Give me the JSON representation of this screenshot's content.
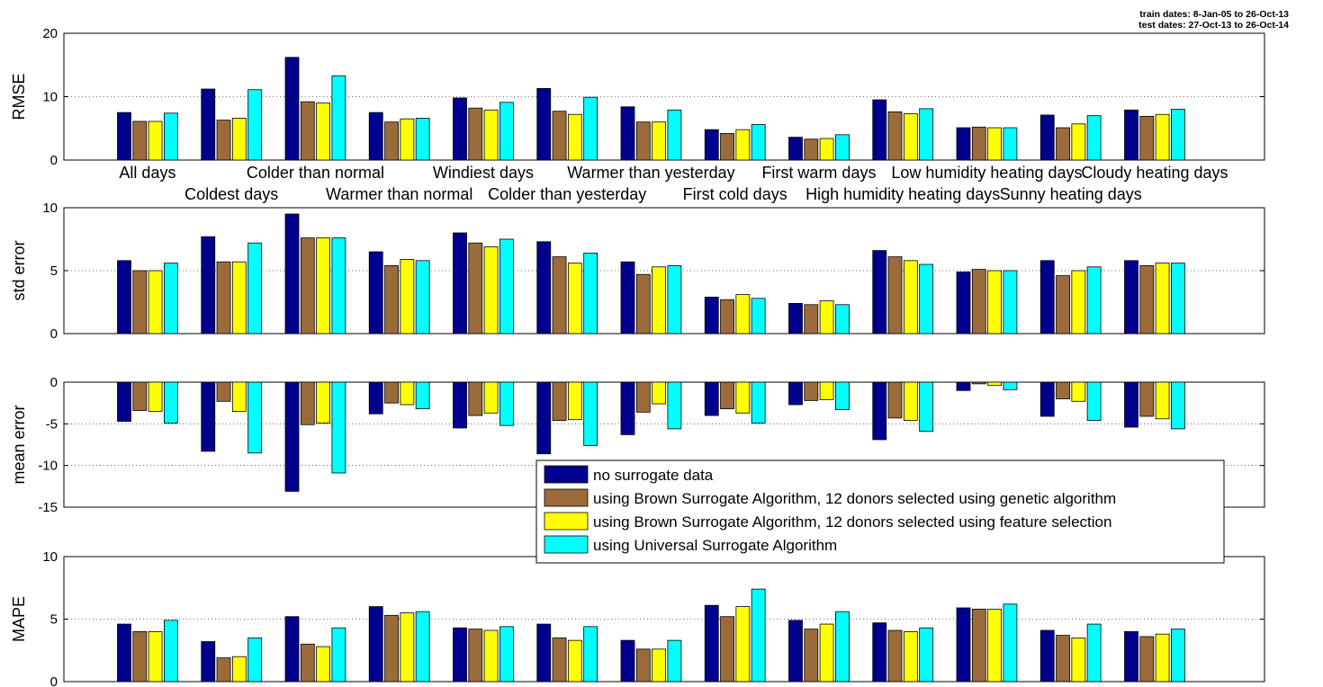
{
  "header": {
    "train_dates": "train dates:   8-Jan-05 to 26-Oct-13",
    "test_dates": "test dates:   27-Oct-13 to 26-Oct-14"
  },
  "legend": {
    "entries": [
      "no surrogate data",
      "using Brown Surrogate Algorithm, 12 donors selected using genetic algorithm",
      "using Brown Surrogate Algorithm, 12 donors selected using feature selection",
      "using Universal Surrogate Algorithm"
    ]
  },
  "chart_data": {
    "type": "bar",
    "categories": [
      "All days",
      "Coldest days",
      "Colder than normal",
      "Warmer than normal",
      "Windiest days",
      "Colder than yesterday",
      "Warmer than yesterday",
      "First cold days",
      "First warm days",
      "High humidity heating days",
      "Low humidity heating days",
      "Sunny heating days",
      "Cloudy heating days"
    ],
    "colors": [
      "#00008F",
      "#9C6B3C",
      "#FFFF00",
      "#00FFFF"
    ],
    "panels": [
      {
        "ylabel": "RMSE",
        "ylim": [
          0,
          20
        ],
        "yticks": [
          "0",
          "10",
          "20"
        ],
        "show_categories": true,
        "series": [
          {
            "name": "no surrogate data",
            "values": [
              7.5,
              11.2,
              16.2,
              7.5,
              9.8,
              11.3,
              8.4,
              4.8,
              3.6,
              9.5,
              5.1,
              7.1,
              7.9
            ]
          },
          {
            "name": "using Brown Surrogate Algorithm, 12 donors selected using genetic algorithm",
            "values": [
              6.1,
              6.3,
              9.2,
              6.0,
              8.2,
              7.7,
              6.0,
              4.2,
              3.3,
              7.6,
              5.2,
              5.1,
              6.9
            ]
          },
          {
            "name": "using Brown Surrogate Algorithm, 12 donors selected using feature selection",
            "values": [
              6.1,
              6.6,
              9.0,
              6.5,
              7.9,
              7.2,
              6.0,
              4.8,
              3.4,
              7.3,
              5.1,
              5.7,
              7.2
            ]
          },
          {
            "name": "using Universal Surrogate Algorithm",
            "values": [
              7.4,
              11.1,
              13.3,
              6.6,
              9.1,
              9.9,
              7.9,
              5.6,
              4.0,
              8.1,
              5.1,
              7.0,
              8.0
            ]
          }
        ]
      },
      {
        "ylabel": "std error",
        "ylim": [
          0,
          10
        ],
        "yticks": [
          "0",
          "5",
          "10"
        ],
        "show_categories": false,
        "series": [
          {
            "name": "no surrogate data",
            "values": [
              5.8,
              7.7,
              9.5,
              6.5,
              8.0,
              7.3,
              5.7,
              2.9,
              2.4,
              6.6,
              4.9,
              5.8,
              5.8
            ]
          },
          {
            "name": "using Brown Surrogate Algorithm, 12 donors selected using genetic algorithm",
            "values": [
              5.0,
              5.7,
              7.6,
              5.4,
              7.2,
              6.1,
              4.7,
              2.7,
              2.3,
              6.1,
              5.1,
              4.6,
              5.4
            ]
          },
          {
            "name": "using Brown Surrogate Algorithm, 12 donors selected using feature selection",
            "values": [
              5.0,
              5.7,
              7.6,
              5.9,
              6.9,
              5.6,
              5.3,
              3.1,
              2.6,
              5.8,
              5.0,
              5.0,
              5.6
            ]
          },
          {
            "name": "using Universal Surrogate Algorithm",
            "values": [
              5.6,
              7.2,
              7.6,
              5.8,
              7.5,
              6.4,
              5.4,
              2.8,
              2.3,
              5.5,
              5.0,
              5.3,
              5.6
            ]
          }
        ]
      },
      {
        "ylabel": "mean error",
        "ylim": [
          -15,
          0
        ],
        "yticks": [
          "0",
          "-5",
          "-10",
          "-15"
        ],
        "show_categories": false,
        "series": [
          {
            "name": "no surrogate data",
            "values": [
              -4.7,
              -8.3,
              -13.1,
              -3.8,
              -5.5,
              -8.6,
              -6.3,
              -4.0,
              -2.7,
              -6.9,
              -1.0,
              -4.1,
              -5.4
            ]
          },
          {
            "name": "using Brown Surrogate Algorithm, 12 donors selected using genetic algorithm",
            "values": [
              -3.4,
              -2.3,
              -5.1,
              -2.5,
              -4.0,
              -4.6,
              -3.6,
              -3.2,
              -2.2,
              -4.3,
              -0.2,
              -2.0,
              -4.1
            ]
          },
          {
            "name": "using Brown Surrogate Algorithm, 12 donors selected using feature selection",
            "values": [
              -3.5,
              -3.5,
              -4.9,
              -2.7,
              -3.7,
              -4.5,
              -2.6,
              -3.7,
              -2.1,
              -4.6,
              -0.4,
              -2.3,
              -4.4
            ]
          },
          {
            "name": "using Universal Surrogate Algorithm",
            "values": [
              -4.9,
              -8.5,
              -10.9,
              -3.2,
              -5.2,
              -7.6,
              -5.6,
              -4.9,
              -3.3,
              -5.9,
              -0.9,
              -4.6,
              -5.6
            ]
          }
        ]
      },
      {
        "ylabel": "MAPE",
        "ylim": [
          0,
          10
        ],
        "yticks": [
          "0",
          "5",
          "10"
        ],
        "show_categories": false,
        "series": [
          {
            "name": "no surrogate data",
            "values": [
              4.6,
              3.2,
              5.2,
              6.0,
              4.3,
              4.6,
              3.3,
              6.1,
              4.9,
              4.7,
              5.9,
              4.1,
              4.0
            ]
          },
          {
            "name": "using Brown Surrogate Algorithm, 12 donors selected using genetic algorithm",
            "values": [
              4.0,
              1.9,
              3.0,
              5.3,
              4.2,
              3.5,
              2.6,
              5.2,
              4.2,
              4.1,
              5.8,
              3.7,
              3.6
            ]
          },
          {
            "name": "using Brown Surrogate Algorithm, 12 donors selected using feature selection",
            "values": [
              4.0,
              2.0,
              2.8,
              5.5,
              4.1,
              3.3,
              2.6,
              6.0,
              4.6,
              4.0,
              5.8,
              3.5,
              3.8
            ]
          },
          {
            "name": "using Universal Surrogate Algorithm",
            "values": [
              4.9,
              3.5,
              4.3,
              5.6,
              4.4,
              4.4,
              3.3,
              7.4,
              5.6,
              4.3,
              6.2,
              4.6,
              4.2
            ]
          }
        ]
      }
    ]
  }
}
